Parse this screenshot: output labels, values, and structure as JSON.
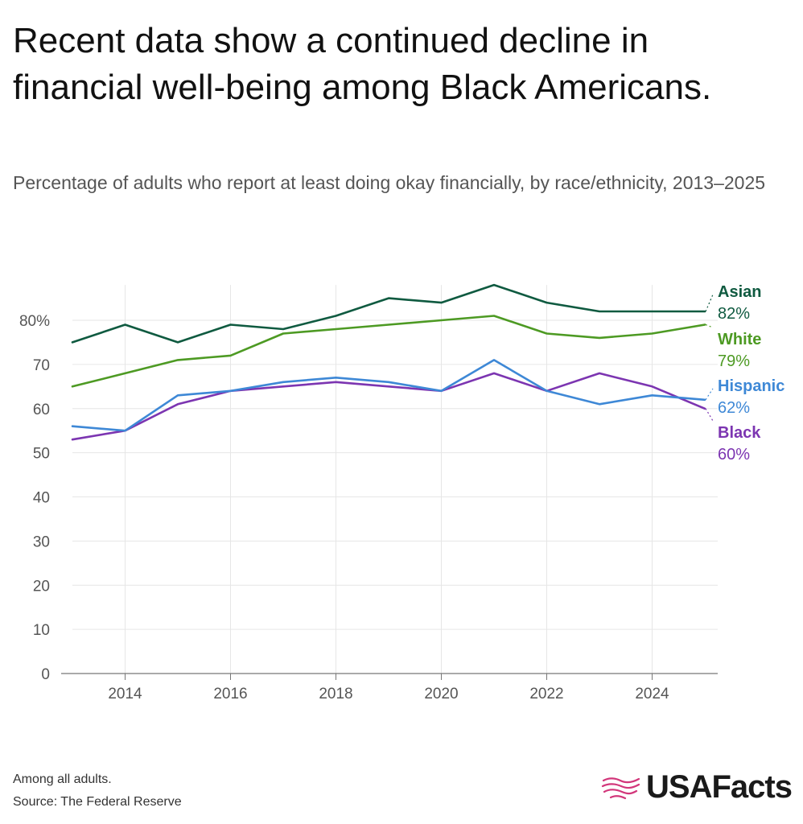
{
  "header": {
    "title": "Recent data show a continued decline in financial well-being among Black Americans.",
    "subtitle": "Percentage of adults who report at least doing okay financially, by race/ethnicity, 2013–2025"
  },
  "footer": {
    "note": "Among all adults.",
    "source": "Source: The Federal Reserve",
    "logo_text": "USAFacts",
    "logo_icon": "usa-map-icon"
  },
  "colors": {
    "Asian": "#0f5a40",
    "White": "#4d9a23",
    "Hispanic": "#3e88d6",
    "Black": "#7c35b1",
    "grid": "#e6e6e6",
    "axis": "#777777",
    "logo": "#d2367a"
  },
  "chart_data": {
    "type": "line",
    "x": [
      2013,
      2014,
      2015,
      2016,
      2017,
      2018,
      2019,
      2020,
      2021,
      2022,
      2023,
      2024,
      2025
    ],
    "xlim": [
      2013,
      2025
    ],
    "ylim": [
      0,
      88
    ],
    "x_ticks": [
      "2014",
      "2016",
      "2018",
      "2020",
      "2022",
      "2024"
    ],
    "y_ticks": [
      "80%",
      "70",
      "60",
      "50",
      "40",
      "30",
      "20",
      "10",
      "0"
    ],
    "grid": true,
    "series": [
      {
        "name": "Asian",
        "end_label": "82%",
        "values": [
          75,
          79,
          75,
          79,
          78,
          81,
          85,
          84,
          88,
          84,
          82,
          82,
          82
        ]
      },
      {
        "name": "White",
        "end_label": "79%",
        "values": [
          65,
          68,
          71,
          72,
          77,
          78,
          79,
          80,
          81,
          77,
          76,
          77,
          79
        ]
      },
      {
        "name": "Hispanic",
        "end_label": "62%",
        "values": [
          56,
          55,
          63,
          64,
          66,
          67,
          66,
          64,
          71,
          64,
          61,
          63,
          62
        ]
      },
      {
        "name": "Black",
        "end_label": "60%",
        "values": [
          53,
          55,
          61,
          64,
          65,
          66,
          65,
          64,
          68,
          64,
          68,
          65,
          60
        ]
      }
    ]
  }
}
